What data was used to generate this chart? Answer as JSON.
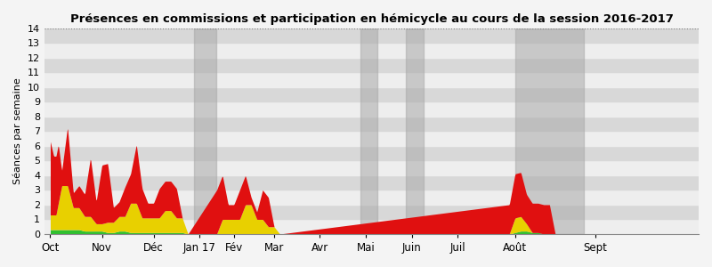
{
  "title": "Présences en commissions et participation en hémicycle au cours de la session 2016-2017",
  "ylabel": "Séances par semaine",
  "ylim": [
    0,
    14
  ],
  "yticks": [
    0,
    1,
    2,
    3,
    4,
    5,
    6,
    7,
    8,
    9,
    10,
    11,
    12,
    13,
    14
  ],
  "bg_light": "#eeeeee",
  "bg_dark": "#d8d8d8",
  "shade_color": "#aaaaaa",
  "shade_alpha": 0.55,
  "color_green": "#30c030",
  "color_yellow": "#e8d000",
  "color_red": "#e01010",
  "fig_bg": "#f4f4f4",
  "months": [
    "Oct",
    "Nov",
    "Déc",
    "Jan 17",
    "Fév",
    "Mar",
    "Avr",
    "Mai",
    "Juin",
    "Juil",
    "Août",
    "Sept"
  ],
  "n_weeks": 56,
  "month_tick_x": [
    0,
    4.5,
    9,
    13,
    16,
    19.5,
    23.5,
    27.5,
    31.5,
    35.5,
    40.5,
    47.5,
    52.5
  ],
  "shade_ranges": [
    [
      12.5,
      14.5
    ],
    [
      27.0,
      28.5
    ],
    [
      31.0,
      32.5
    ],
    [
      40.5,
      46.5
    ]
  ],
  "green_data_x": [
    0,
    0.5,
    1,
    1.5,
    2,
    2.5,
    3,
    3.5,
    4,
    4.5,
    5,
    5.5,
    6,
    6.5,
    7,
    7.5,
    8,
    8.5,
    9,
    9.5,
    10,
    10.5,
    11,
    11.5,
    12,
    40,
    40.5,
    41,
    41.5,
    42,
    42.5,
    43,
    43.5,
    44,
    56
  ],
  "green_data_y": [
    0.3,
    0.3,
    0.3,
    0.3,
    0.3,
    0.3,
    0.2,
    0.2,
    0.2,
    0.2,
    0.1,
    0.1,
    0.2,
    0.2,
    0.1,
    0.1,
    0.1,
    0.1,
    0.1,
    0.1,
    0.1,
    0.1,
    0.1,
    0.1,
    0.0,
    0.0,
    0.1,
    0.2,
    0.2,
    0.1,
    0.1,
    0.0,
    0.0,
    0.0,
    0.0
  ],
  "yellow_data_x": [
    0,
    0.5,
    1,
    1.5,
    2,
    2.5,
    3,
    3.5,
    4,
    4.5,
    5,
    5.5,
    6,
    6.5,
    7,
    7.5,
    8,
    8.5,
    9,
    9.5,
    10,
    10.5,
    11,
    11.5,
    12,
    14.5,
    15,
    15.5,
    16,
    16.5,
    17,
    17.5,
    18,
    18.5,
    19,
    19.5,
    20,
    40,
    40.5,
    41,
    41.5,
    42,
    56
  ],
  "yellow_data_y": [
    1.0,
    1.0,
    3.0,
    3.0,
    1.5,
    1.5,
    1.0,
    1.0,
    0.5,
    0.5,
    0.7,
    0.7,
    1.0,
    1.0,
    2.0,
    2.0,
    1.0,
    1.0,
    1.0,
    1.0,
    1.5,
    1.5,
    1.0,
    1.0,
    0.0,
    0.0,
    1.0,
    1.0,
    1.0,
    1.0,
    2.0,
    2.0,
    1.0,
    1.0,
    0.5,
    0.5,
    0.0,
    0.0,
    1.0,
    1.0,
    0.5,
    0.0,
    0.0
  ],
  "red_data_x": [
    0,
    0.3,
    0.7,
    1,
    1.5,
    2,
    2.5,
    3,
    3.5,
    4,
    4.5,
    5,
    5.5,
    6,
    6.5,
    7,
    7.5,
    8,
    8.5,
    9,
    9.5,
    10,
    10.5,
    11,
    11.5,
    12,
    14.5,
    15,
    15.5,
    16,
    16.5,
    17,
    17.5,
    18,
    18.5,
    19,
    19.5,
    20,
    40,
    40.5,
    41,
    41.5,
    42,
    42.5,
    43,
    43.5,
    44,
    44.5,
    45,
    56
  ],
  "red_data_y": [
    5.0,
    4.0,
    4.0,
    1.0,
    4.0,
    1.0,
    1.5,
    1.5,
    4.0,
    1.5,
    4.0,
    4.0,
    1.0,
    1.0,
    2.0,
    2.0,
    4.0,
    2.0,
    1.0,
    1.0,
    2.0,
    2.0,
    2.0,
    2.0,
    0.0,
    0.0,
    3.0,
    3.0,
    1.0,
    1.0,
    2.0,
    2.0,
    0.5,
    0.5,
    2.0,
    2.0,
    0.0,
    0.0,
    2.0,
    3.0,
    3.0,
    2.0,
    2.0,
    2.0,
    2.0,
    2.0,
    0.0,
    0.0,
    0.0,
    0.0
  ]
}
